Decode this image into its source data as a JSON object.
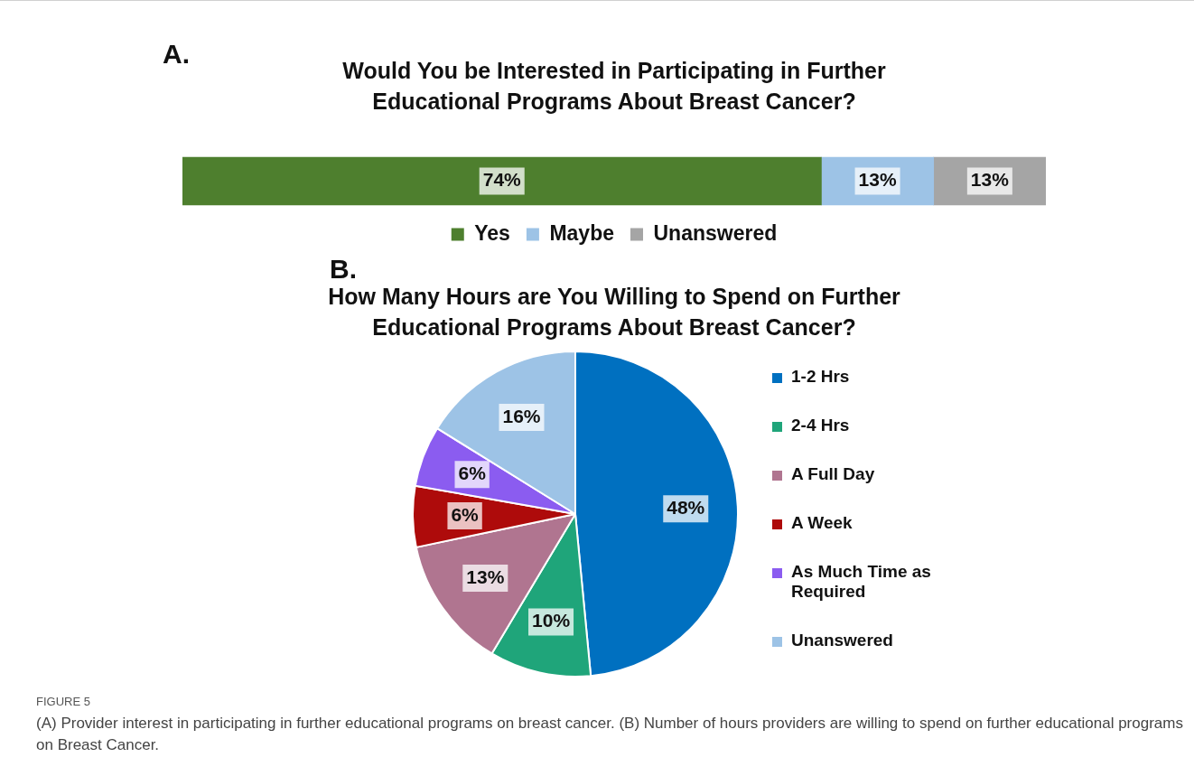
{
  "chart_data": [
    {
      "type": "bar",
      "title": "Would You be Interested in Participating in Further Educational Programs About Breast Cancer?",
      "annotations": [
        "A."
      ],
      "orientation": "horizontal",
      "stacked": true,
      "categories": [
        null
      ],
      "xlim": [
        0,
        100
      ],
      "tick_labels": false,
      "legend": "bottom",
      "series": [
        {
          "name": "Yes",
          "color": "#4e7f2e",
          "values": [
            74
          ],
          "value_labels": [
            "74%"
          ]
        },
        {
          "name": "Maybe",
          "color": "#9dc3e6",
          "values": [
            13
          ],
          "value_labels": [
            "13%"
          ]
        },
        {
          "name": "Unanswered",
          "color": "#a5a5a5",
          "values": [
            13
          ],
          "value_labels": [
            "13%"
          ]
        }
      ]
    },
    {
      "type": "pie",
      "title": "How Many Hours are You Willing to Spend on Further Educational Programs About Breast Cancer?",
      "annotations": [
        "B.",
        "FIGURE 5",
        "(A) Provider interest in participating in further educational programs on breast cancer. (B) Number of hours providers are willing to spend on further educational programs on Breast Cancer."
      ],
      "legend": "right",
      "categories": [
        "1-2 Hrs",
        "2-4 Hrs",
        "A Full Day",
        "A Week",
        "As Much Time as Required",
        "Unanswered"
      ],
      "values": [
        48,
        10,
        13,
        6,
        6,
        16
      ],
      "colors": [
        "#0070c0",
        "#1fa57a",
        "#b07590",
        "#ae0b0b",
        "#8b5cf0",
        "#9dc3e6"
      ],
      "value_labels": [
        "48%",
        "10%",
        "13%",
        "6%",
        "6%",
        "16%"
      ]
    }
  ]
}
